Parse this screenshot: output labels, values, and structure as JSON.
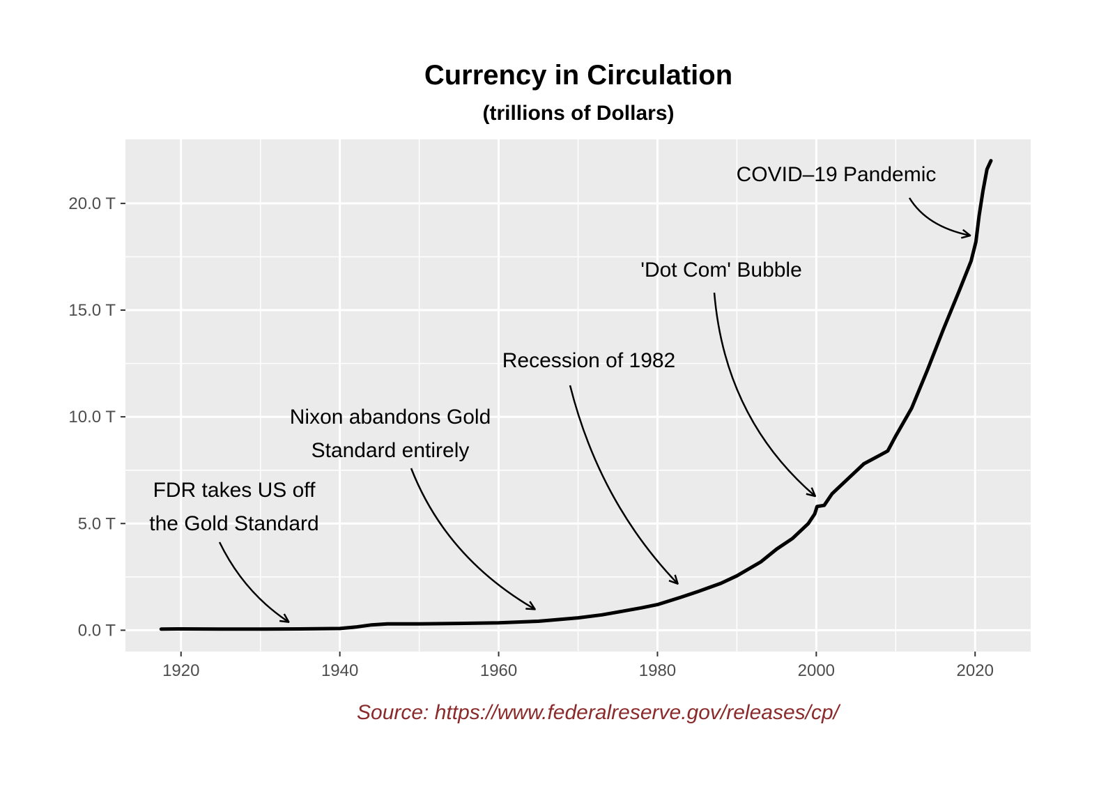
{
  "chart_data": {
    "type": "line",
    "title": "Currency in Circulation",
    "subtitle": "(trillions of Dollars)",
    "xlabel": "",
    "ylabel": "",
    "xlim": [
      1913,
      2027
    ],
    "ylim": [
      -1.0,
      23.0
    ],
    "x_ticks": [
      1920,
      1940,
      1960,
      1980,
      2000,
      2020
    ],
    "y_ticks": [
      {
        "value": 0,
        "label": "0.0 T"
      },
      {
        "value": 5,
        "label": "5.0 T"
      },
      {
        "value": 10,
        "label": "10.0 T"
      },
      {
        "value": 15,
        "label": "15.0 T"
      },
      {
        "value": 20,
        "label": "20.0 T"
      }
    ],
    "grid": true,
    "colors": {
      "line": "#000000",
      "panel": "#ebebeb",
      "grid": "#ffffff",
      "source": "#8b2a2a"
    },
    "series": [
      {
        "name": "Currency in Circulation",
        "x": [
          1917.5,
          1920,
          1925,
          1930,
          1935,
          1940,
          1942,
          1944,
          1946,
          1950,
          1955,
          1960,
          1965,
          1970,
          1973,
          1975,
          1978,
          1980,
          1983,
          1985,
          1988,
          1990,
          1993,
          1995,
          1997,
          1999,
          1999.8,
          2000.1,
          2001,
          2002,
          2004,
          2006,
          2008,
          2009,
          2010,
          2012,
          2014,
          2016,
          2018,
          2019.5,
          2020.1,
          2020.5,
          2021,
          2021.5,
          2022
        ],
        "y": [
          0.05,
          0.06,
          0.05,
          0.05,
          0.06,
          0.08,
          0.15,
          0.25,
          0.3,
          0.3,
          0.32,
          0.35,
          0.42,
          0.58,
          0.72,
          0.85,
          1.05,
          1.2,
          1.55,
          1.8,
          2.2,
          2.55,
          3.2,
          3.8,
          4.3,
          5.0,
          5.45,
          5.8,
          5.85,
          6.4,
          7.1,
          7.8,
          8.2,
          8.4,
          9.1,
          10.4,
          12.2,
          14.1,
          15.9,
          17.3,
          18.2,
          19.4,
          20.6,
          21.6,
          22.0
        ]
      }
    ],
    "annotations": [
      {
        "lines": [
          "FDR takes US off",
          "the Gold Standard"
        ],
        "arrow_to": [
          1933.5,
          0.4
        ]
      },
      {
        "lines": [
          "Nixon abandons Gold",
          "Standard entirely"
        ],
        "arrow_to": [
          1964.5,
          1.0
        ]
      },
      {
        "lines": [
          "Recession of 1982"
        ],
        "arrow_to": [
          1982.5,
          2.2
        ]
      },
      {
        "lines": [
          "'Dot Com' Bubble"
        ],
        "arrow_to": [
          1999.8,
          6.3
        ]
      },
      {
        "lines": [
          "COVID–19 Pandemic"
        ],
        "arrow_to": [
          2019.3,
          18.5
        ]
      }
    ]
  },
  "source_note": "Source: https://www.federalreserve.gov/releases/cp/"
}
